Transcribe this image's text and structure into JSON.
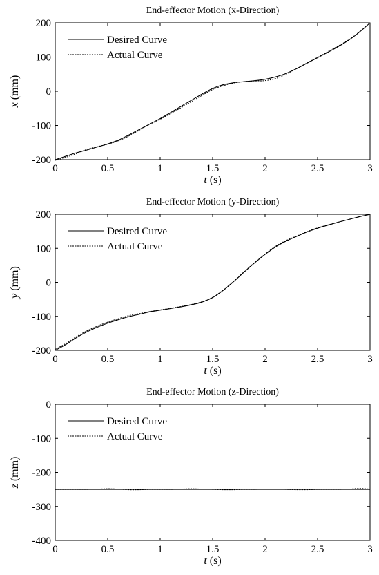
{
  "chart_data": [
    {
      "type": "line",
      "title": "End-effector Motion (x-Direction)",
      "xlabel_var": "t",
      "xlabel_unit": "(s)",
      "ylabel_var": "x",
      "ylabel_unit": "(mm)",
      "xlim": [
        0,
        3
      ],
      "ylim": [
        -200,
        200
      ],
      "xticks": [
        "0",
        "0.5",
        "1",
        "1.5",
        "2",
        "2.5",
        "3"
      ],
      "yticks": [
        "-200",
        "-100",
        "0",
        "100",
        "200"
      ],
      "grid": false,
      "legend_position": "top-left",
      "x": [
        0,
        0.1,
        0.2,
        0.3,
        0.4,
        0.5,
        0.6,
        0.7,
        0.8,
        0.9,
        1.0,
        1.1,
        1.2,
        1.3,
        1.4,
        1.5,
        1.6,
        1.7,
        1.8,
        1.9,
        2.0,
        2.1,
        2.2,
        2.3,
        2.4,
        2.5,
        2.6,
        2.7,
        2.8,
        2.9,
        3.0
      ],
      "series": [
        {
          "name": "Desired Curve",
          "style": "solid",
          "values": [
            -200,
            -190,
            -180,
            -172,
            -163,
            -154,
            -143,
            -128,
            -112,
            -96,
            -80,
            -62,
            -44,
            -26,
            -8,
            8,
            19,
            25,
            28,
            31,
            35,
            42,
            52,
            66,
            82,
            98,
            114,
            131,
            150,
            173,
            200
          ]
        },
        {
          "name": "Actual Curve",
          "style": "dotted",
          "values": [
            -202,
            -193,
            -183,
            -170,
            -162,
            -155,
            -145,
            -131,
            -114,
            -97,
            -82,
            -65,
            -48,
            -30,
            -12,
            5,
            16,
            24,
            28,
            30,
            31,
            37,
            50,
            66,
            83,
            99,
            116,
            133,
            151,
            174,
            200
          ]
        }
      ]
    },
    {
      "type": "line",
      "title": "End-effector Motion (y-Direction)",
      "xlabel_var": "t",
      "xlabel_unit": "(s)",
      "ylabel_var": "y",
      "ylabel_unit": "(mm)",
      "xlim": [
        0,
        3
      ],
      "ylim": [
        -200,
        200
      ],
      "xticks": [
        "0",
        "0.5",
        "1",
        "1.5",
        "2",
        "2.5",
        "3"
      ],
      "yticks": [
        "-200",
        "-100",
        "0",
        "100",
        "200"
      ],
      "grid": false,
      "legend_position": "top-left",
      "x": [
        0,
        0.1,
        0.2,
        0.3,
        0.4,
        0.5,
        0.6,
        0.7,
        0.8,
        0.9,
        1.0,
        1.1,
        1.2,
        1.3,
        1.4,
        1.5,
        1.6,
        1.7,
        1.8,
        1.9,
        2.0,
        2.1,
        2.2,
        2.3,
        2.4,
        2.5,
        2.6,
        2.7,
        2.8,
        2.9,
        3.0
      ],
      "series": [
        {
          "name": "Desired Curve",
          "style": "solid",
          "values": [
            -200,
            -183,
            -163,
            -146,
            -132,
            -120,
            -110,
            -101,
            -94,
            -87,
            -82,
            -77,
            -72,
            -66,
            -58,
            -45,
            -24,
            2,
            30,
            57,
            82,
            104,
            121,
            135,
            148,
            159,
            168,
            177,
            185,
            193,
            200
          ]
        },
        {
          "name": "Actual Curve",
          "style": "dotted",
          "values": [
            -197,
            -180,
            -160,
            -143,
            -129,
            -117,
            -107,
            -98,
            -92,
            -86,
            -81,
            -76,
            -71,
            -65,
            -57,
            -44,
            -23,
            3,
            31,
            58,
            83,
            106,
            123,
            136,
            149,
            160,
            169,
            177,
            185,
            193,
            200
          ]
        }
      ]
    },
    {
      "type": "line",
      "title": "End-effector Motion (z-Direction)",
      "xlabel_var": "t",
      "xlabel_unit": "(s)",
      "ylabel_var": "z",
      "ylabel_unit": "(mm)",
      "xlim": [
        0,
        3
      ],
      "ylim": [
        -400,
        0
      ],
      "xticks": [
        "0",
        "0.5",
        "1",
        "1.5",
        "2",
        "2.5",
        "3"
      ],
      "yticks": [
        "-400",
        "-300",
        "-200",
        "-100",
        "0"
      ],
      "grid": false,
      "legend_position": "top-left",
      "x": [
        0,
        0.1,
        0.2,
        0.3,
        0.4,
        0.5,
        0.6,
        0.7,
        0.8,
        0.9,
        1.0,
        1.1,
        1.2,
        1.3,
        1.4,
        1.5,
        1.6,
        1.7,
        1.8,
        1.9,
        2.0,
        2.1,
        2.2,
        2.3,
        2.4,
        2.5,
        2.6,
        2.7,
        2.8,
        2.9,
        3.0
      ],
      "series": [
        {
          "name": "Desired Curve",
          "style": "solid",
          "values": [
            -250,
            -250,
            -250,
            -250,
            -250,
            -250,
            -250,
            -250,
            -250,
            -250,
            -250,
            -250,
            -250,
            -250,
            -250,
            -250,
            -250,
            -250,
            -250,
            -250,
            -250,
            -250,
            -250,
            -250,
            -250,
            -250,
            -250,
            -250,
            -250,
            -250,
            -250
          ]
        },
        {
          "name": "Actual Curve",
          "style": "dotted",
          "values": [
            -250,
            -250,
            -250,
            -250,
            -249,
            -248,
            -249,
            -251,
            -251,
            -250,
            -250,
            -250,
            -249,
            -248,
            -249,
            -250,
            -251,
            -251,
            -250,
            -250,
            -249,
            -249,
            -250,
            -251,
            -251,
            -250,
            -250,
            -250,
            -249,
            -247,
            -249
          ]
        }
      ]
    }
  ]
}
